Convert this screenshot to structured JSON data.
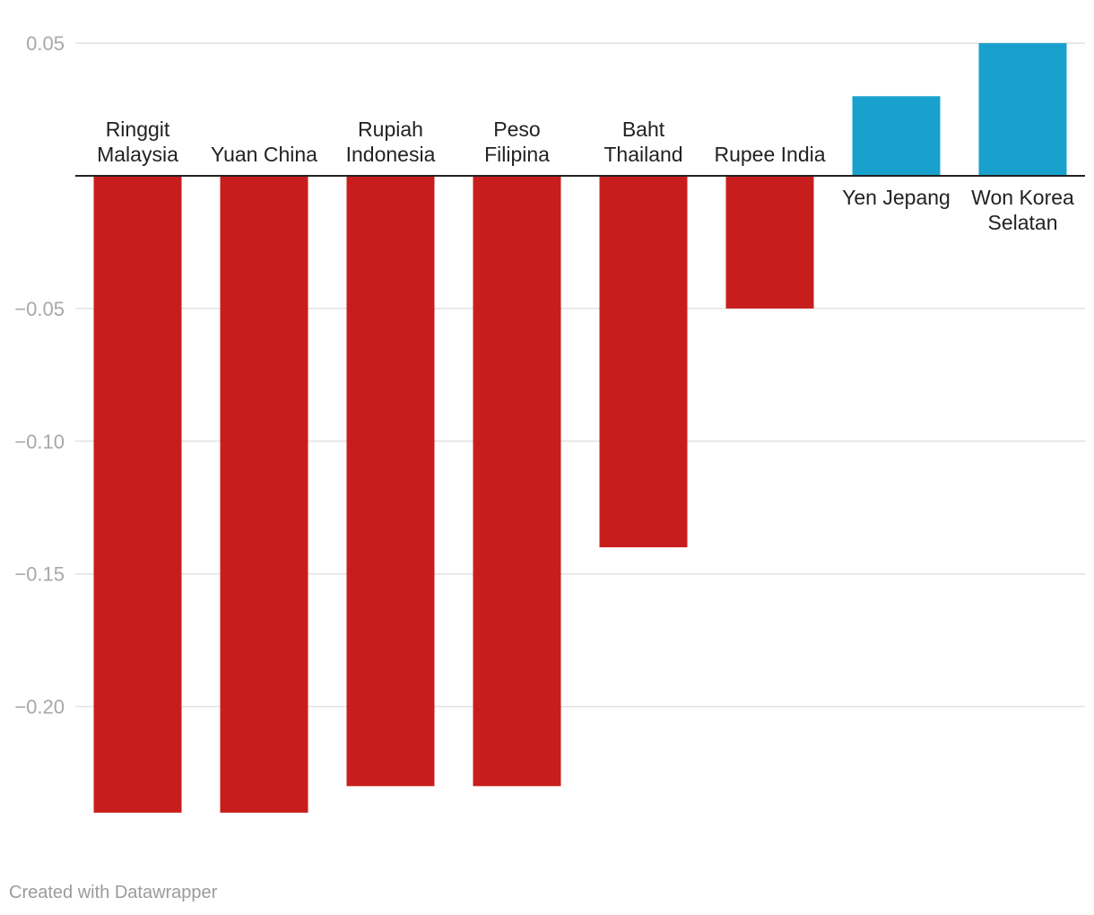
{
  "chart_data": {
    "type": "bar",
    "categories": [
      [
        "Ringgit",
        "Malaysia"
      ],
      [
        "Yuan China"
      ],
      [
        "Rupiah",
        "Indonesia"
      ],
      [
        "Peso",
        "Filipina"
      ],
      [
        "Baht",
        "Thailand"
      ],
      [
        "Rupee India"
      ],
      [
        "Yen Jepang"
      ],
      [
        "Won Korea",
        "Selatan"
      ]
    ],
    "values": [
      -0.24,
      -0.24,
      -0.23,
      -0.23,
      -0.14,
      -0.05,
      0.03,
      0.05
    ],
    "ylim": [
      -0.25,
      0.05
    ],
    "yticks": [
      0.05,
      -0.05,
      -0.1,
      -0.15,
      -0.2
    ],
    "ytick_labels": [
      "0.05",
      "−0.05",
      "−0.10",
      "−0.15",
      "−0.20"
    ],
    "title": "",
    "xlabel": "",
    "ylabel": "",
    "grid": true,
    "negative_color": "#c71e1d",
    "positive_color": "#18a1cd"
  },
  "footer": {
    "credit": "Created with Datawrapper"
  }
}
